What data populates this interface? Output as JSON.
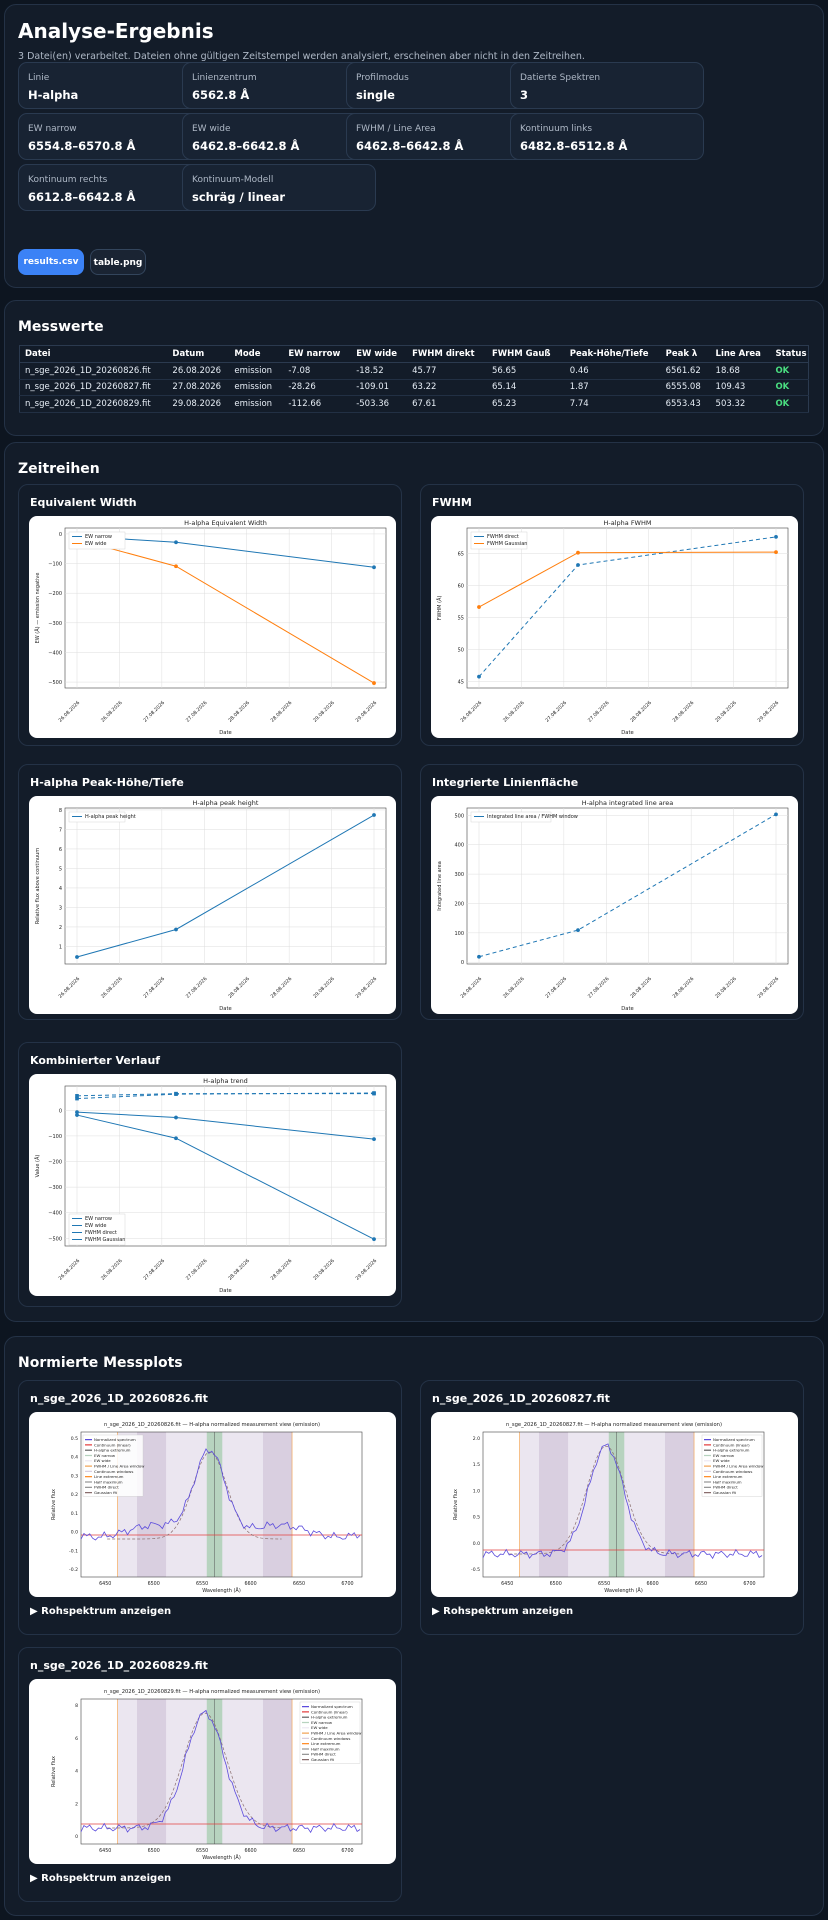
{
  "result": {
    "title": "Analyse-Ergebnis",
    "subtitle": "3 Datei(en) verarbeitet. Dateien ohne gültigen Zeitstempel werden analysiert, erscheinen aber nicht in den Zeitreihen.",
    "fields": [
      {
        "label": "Linie",
        "value": "H-alpha"
      },
      {
        "label": "Linienzentrum",
        "value": "6562.8 Å"
      },
      {
        "label": "Profilmodus",
        "value": "single"
      },
      {
        "label": "Datierte Spektren",
        "value": "3"
      },
      {
        "label": "EW narrow",
        "value": "6554.8–6570.8 Å"
      },
      {
        "label": "EW wide",
        "value": "6462.8–6642.8 Å"
      },
      {
        "label": "FWHM / Line Area",
        "value": "6462.8–6642.8 Å"
      },
      {
        "label": "Kontinuum links",
        "value": "6482.8–6512.8 Å"
      },
      {
        "label": "Kontinuum rechts",
        "value": "6612.8–6642.8 Å"
      },
      {
        "label": "Kontinuum-Modell",
        "value": "schräg / linear"
      }
    ],
    "btn_csv": "results.csv",
    "btn_png": "table.png"
  },
  "measure": {
    "title": "Messwerte",
    "headers": [
      "Datei",
      "Datum",
      "Mode",
      "EW narrow",
      "EW wide",
      "FWHM direkt",
      "FWHM Gauß",
      "Peak-Höhe/Tiefe",
      "Peak λ",
      "Line Area",
      "Status"
    ],
    "rows": [
      [
        "n_sge_2026_1D_20260826.fit",
        "26.08.2026",
        "emission",
        "-7.08",
        "-18.52",
        "45.77",
        "56.65",
        "0.46",
        "6561.62",
        "18.68",
        "OK"
      ],
      [
        "n_sge_2026_1D_20260827.fit",
        "27.08.2026",
        "emission",
        "-28.26",
        "-109.01",
        "63.22",
        "65.14",
        "1.87",
        "6555.08",
        "109.43",
        "OK"
      ],
      [
        "n_sge_2026_1D_20260829.fit",
        "29.08.2026",
        "emission",
        "-112.66",
        "-503.36",
        "67.61",
        "65.23",
        "7.74",
        "6553.43",
        "503.32",
        "OK"
      ]
    ]
  },
  "ts": {
    "title": "Zeitreihen",
    "dates": [
      "26.08.2026",
      "26.08.2026",
      "27.08.2026",
      "27.08.2026",
      "28.08.2026",
      "28.08.2026",
      "29.08.2026",
      "29.08.2026"
    ],
    "ew": {
      "panel": "Equivalent Width",
      "title": "H-alpha Equivalent Width",
      "ylabel": "EW (Å) — emission negative",
      "xlabel": "Date",
      "legend": [
        "EW narrow",
        "EW wide"
      ]
    },
    "fwhm": {
      "panel": "FWHM",
      "title": "H-alpha FWHM",
      "ylabel": "FWHM (Å)",
      "xlabel": "Date",
      "legend": [
        "FWHM direct",
        "FWHM Gaussian"
      ]
    },
    "peak": {
      "panel": "H-alpha Peak-Höhe/Tiefe",
      "title": "H-alpha peak height",
      "ylabel": "Relative flux above continuum",
      "xlabel": "Date",
      "legend": [
        "H-alpha peak height"
      ]
    },
    "area": {
      "panel": "Integrierte Linienfläche",
      "title": "H-alpha integrated line area",
      "ylabel": "Integrated line area",
      "xlabel": "Date",
      "legend": [
        "Integrated line area / FWHM window"
      ]
    },
    "comb": {
      "panel": "Kombinierter Verlauf",
      "title": "H-alpha trend",
      "ylabel": "Value (Å)",
      "xlabel": "Date",
      "legend": [
        "EW narrow",
        "EW wide",
        "FWHM direct",
        "FWHM Gaussian"
      ]
    }
  },
  "chart_data": [
    {
      "type": "line",
      "title": "H-alpha Equivalent Width",
      "x": [
        "26.08.2026",
        "27.08.2026",
        "29.08.2026"
      ],
      "series": [
        {
          "name": "EW narrow",
          "values": [
            -7.08,
            -28.26,
            -112.66
          ]
        },
        {
          "name": "EW wide",
          "values": [
            -18.52,
            -109.01,
            -503.36
          ]
        }
      ],
      "ylim": [
        -520,
        20
      ],
      "yticks": [
        "0",
        "−100",
        "−200",
        "−300",
        "−400",
        "−500"
      ]
    },
    {
      "type": "line",
      "title": "H-alpha FWHM",
      "x": [
        "26.08.2026",
        "27.08.2026",
        "29.08.2026"
      ],
      "series": [
        {
          "name": "FWHM direct",
          "values": [
            45.77,
            63.22,
            67.61
          ]
        },
        {
          "name": "FWHM Gaussian",
          "values": [
            56.65,
            65.14,
            65.23
          ]
        }
      ],
      "ylim": [
        44,
        69
      ],
      "yticks": [
        "45",
        "50",
        "55",
        "60",
        "65"
      ]
    },
    {
      "type": "line",
      "title": "H-alpha peak height",
      "x": [
        "26.08.2026",
        "27.08.2026",
        "29.08.2026"
      ],
      "series": [
        {
          "name": "H-alpha peak height",
          "values": [
            0.46,
            1.87,
            7.74
          ]
        }
      ],
      "ylim": [
        0.1,
        8.1
      ],
      "yticks": [
        "1",
        "2",
        "3",
        "4",
        "5",
        "6",
        "7",
        "8"
      ]
    },
    {
      "type": "line",
      "title": "H-alpha integrated line area",
      "x": [
        "26.08.2026",
        "27.08.2026",
        "29.08.2026"
      ],
      "series": [
        {
          "name": "Integrated line area / FWHM window",
          "values": [
            18.68,
            109.43,
            503.32
          ]
        }
      ],
      "ylim": [
        -6,
        525
      ],
      "yticks": [
        "0",
        "100",
        "200",
        "300",
        "400",
        "500"
      ]
    },
    {
      "type": "line",
      "title": "H-alpha trend",
      "x": [
        "26.08.2026",
        "27.08.2026",
        "29.08.2026"
      ],
      "series": [
        {
          "name": "EW narrow",
          "values": [
            -7.08,
            -28.26,
            -112.66
          ]
        },
        {
          "name": "EW wide",
          "values": [
            -18.52,
            -109.01,
            -503.36
          ]
        },
        {
          "name": "FWHM direct",
          "values": [
            45.77,
            63.22,
            67.61
          ]
        },
        {
          "name": "FWHM Gaussian",
          "values": [
            56.65,
            65.14,
            65.23
          ]
        }
      ],
      "ylim": [
        -530,
        95
      ],
      "yticks": [
        "0",
        "−100",
        "−200",
        "−300",
        "−400",
        "−500"
      ]
    }
  ],
  "norm": {
    "title": "Normierte Messplots",
    "toggle": "▶ Rohspektrum anzeigen",
    "xlabel": "Wavelength (Å)",
    "ylabel": "Relative flux",
    "xticks": [
      "6450",
      "6500",
      "6550",
      "6600",
      "6650",
      "6700"
    ],
    "legend": [
      "Normalized spectrum",
      "Continuum (linear)",
      "H-alpha extremum",
      "EW narrow",
      "EW wide",
      "FWHM / Line Area window",
      "Continuum windows",
      "Line extremum",
      "Half maximum",
      "FWHM direct",
      "Gaussian fit"
    ],
    "plots": [
      {
        "file": "n_sge_2026_1D_20260826.fit",
        "title": "n_sge_2026_1D_20260826.fit — H-alpha normalized measurement view (emission)",
        "yticks": [
          "-0.2",
          "-0.1",
          "0.0",
          "0.1",
          "0.2",
          "0.3",
          "0.4",
          "0.5"
        ]
      },
      {
        "file": "n_sge_2026_1D_20260827.fit",
        "title": "n_sge_2026_1D_20260827.fit — H-alpha normalized measurement view (emission)",
        "yticks": [
          "-0.5",
          "0.0",
          "0.5",
          "1.0",
          "1.5",
          "2.0"
        ]
      },
      {
        "file": "n_sge_2026_1D_20260829.fit",
        "title": "n_sge_2026_1D_20260829.fit — H-alpha normalized measurement view (emission)",
        "yticks": [
          "0",
          "2",
          "4",
          "6",
          "8"
        ]
      }
    ]
  }
}
